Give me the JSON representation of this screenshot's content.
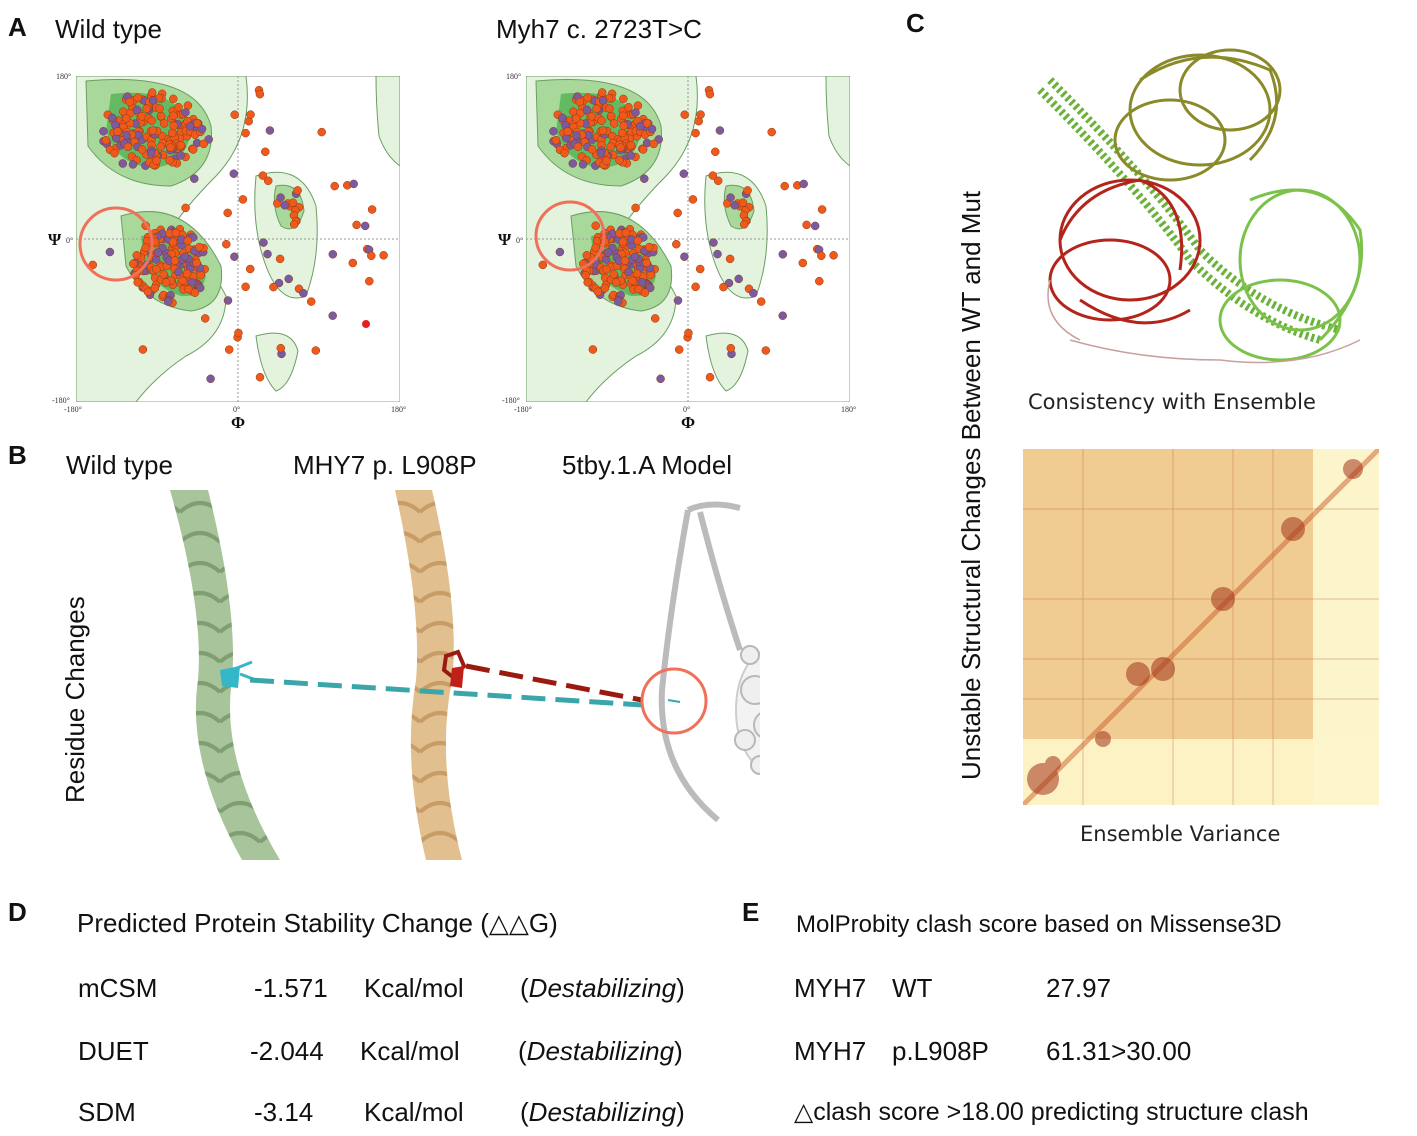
{
  "panel_a": {
    "letter": "A",
    "left_title": "Wild type",
    "right_title": "Myh7 c. 2723T>C",
    "psi": "Ψ",
    "phi": "Φ",
    "ticks": {
      "y_top": "180°",
      "y_mid": "0°",
      "y_bot": "-180°",
      "x_left": "-180°",
      "x_mid": "0°",
      "x_right": "180°"
    }
  },
  "panel_b": {
    "letter": "B",
    "side_label": "Residue Changes",
    "wt_label": "Wild type",
    "mut_label": "MHY7 p. L908P",
    "model_label": "5tby.1.A Model"
  },
  "panel_c": {
    "letter": "C",
    "side_label": "Unstable Structural Changes Between WT and Mut",
    "structure_caption": "Consistency with Ensemble",
    "heatmap_caption": "Ensemble Variance"
  },
  "panel_d": {
    "letter": "D",
    "title": "Predicted Protein Stability Change (△△G)",
    "rows": [
      {
        "method": "mCSM",
        "value": "-1.571",
        "unit": "Kcal/mol",
        "effect": "Destabilizing"
      },
      {
        "method": "DUET",
        "value": "-2.044",
        "unit": "Kcal/mol",
        "effect": "Destabilizing"
      },
      {
        "method": "SDM",
        "value": "-3.14",
        "unit": "Kcal/mol",
        "effect": "Destabilizing"
      }
    ]
  },
  "panel_e": {
    "letter": "E",
    "title": "MolProbity clash score based on Missense3D",
    "rows": [
      {
        "gene": "MYH7",
        "variant": "WT",
        "score": "27.97"
      },
      {
        "gene": "MYH7",
        "variant": "p.L908P",
        "score": "61.31>30.00"
      }
    ],
    "note": "△clash score >18.00 predicting structure clash"
  },
  "colors": {
    "rama_light": "#e4f3dd",
    "rama_mid": "#a9d99a",
    "rama_dark": "#4caf50",
    "dot_orange": "#ef5a1c",
    "dot_purple": "#7a5aa0",
    "highlight_circle": "#f0705a",
    "helix_green": "#a7c49a",
    "helix_tan": "#e2bf8f",
    "cyan": "#3aa6a9",
    "darkred": "#9b1a10"
  }
}
